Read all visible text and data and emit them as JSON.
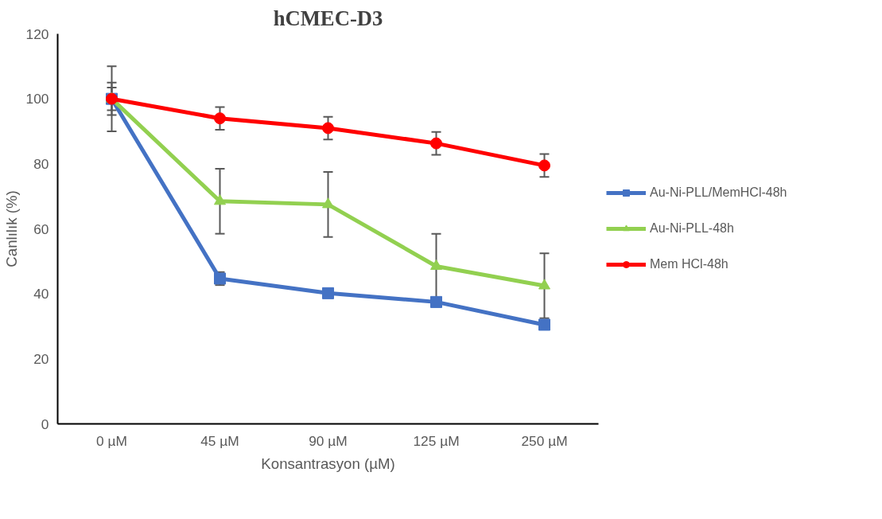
{
  "chart_data": {
    "type": "line",
    "title": "hCMEC-D3",
    "xlabel": "Konsantrasyon (µM)",
    "ylabel": "Canlılık (%)",
    "categories": [
      "0 µM",
      "45 µM",
      "90 µM",
      "125 µM",
      "250 µM"
    ],
    "series": [
      {
        "name": "Au-Ni-PLL/MemHCl-48h",
        "color": "#4472c4",
        "marker": "square",
        "values": [
          100,
          44.7,
          40.2,
          37.5,
          30.5
        ],
        "errors": [
          5,
          2,
          null,
          null,
          null
        ]
      },
      {
        "name": "Au-Ni-PLL-48h",
        "color": "#92d050",
        "marker": "triangle",
        "values": [
          100,
          68.5,
          67.5,
          48.5,
          42.5
        ],
        "errors": [
          10,
          10,
          10,
          10,
          10
        ]
      },
      {
        "name": "Mem HCl-48h",
        "color": "#ff0000",
        "marker": "circle",
        "values": [
          100,
          94,
          91,
          86.3,
          79.5
        ],
        "errors": [
          3.5,
          3.5,
          3.5,
          3.5,
          3.5
        ]
      }
    ],
    "ylim": [
      0,
      120
    ],
    "yticks": [
      0,
      20,
      40,
      60,
      80,
      100,
      120
    ],
    "grid": false,
    "legend": "right",
    "line_style": "solid"
  }
}
